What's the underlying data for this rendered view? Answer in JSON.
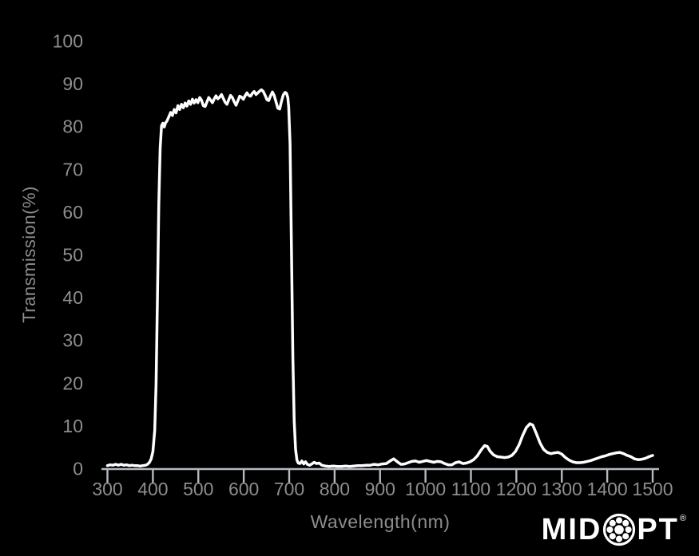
{
  "chart_data": {
    "type": "line",
    "title": "",
    "xlabel": "Wavelength(nm)",
    "ylabel": "Transmission(%)",
    "xlim": [
      300,
      1500
    ],
    "ylim": [
      0,
      100
    ],
    "x_ticks": [
      300,
      400,
      500,
      600,
      700,
      800,
      900,
      1000,
      1100,
      1200,
      1300,
      1400,
      1500
    ],
    "y_ticks": [
      0,
      10,
      20,
      30,
      40,
      50,
      60,
      70,
      80,
      90,
      100
    ],
    "grid": false,
    "legend_position": "none",
    "series": [
      {
        "name": "Transmission",
        "color": "#ffffff",
        "points": [
          [
            300,
            0.7
          ],
          [
            306,
            0.9
          ],
          [
            312,
            0.8
          ],
          [
            318,
            1.0
          ],
          [
            324,
            0.8
          ],
          [
            330,
            1.0
          ],
          [
            336,
            0.8
          ],
          [
            342,
            0.9
          ],
          [
            348,
            0.7
          ],
          [
            354,
            0.8
          ],
          [
            360,
            0.7
          ],
          [
            366,
            0.7
          ],
          [
            372,
            0.6
          ],
          [
            378,
            0.7
          ],
          [
            384,
            0.8
          ],
          [
            388,
            1.0
          ],
          [
            392,
            1.4
          ],
          [
            396,
            2.2
          ],
          [
            400,
            4.0
          ],
          [
            404,
            9.0
          ],
          [
            407,
            20.0
          ],
          [
            410,
            40.0
          ],
          [
            413,
            62.0
          ],
          [
            416,
            75.0
          ],
          [
            419,
            80.2
          ],
          [
            422,
            80.8
          ],
          [
            425,
            79.9
          ],
          [
            428,
            80.9
          ],
          [
            431,
            81.3
          ],
          [
            435,
            82.3
          ],
          [
            439,
            83.3
          ],
          [
            443,
            82.6
          ],
          [
            447,
            84.0
          ],
          [
            451,
            83.2
          ],
          [
            455,
            84.9
          ],
          [
            459,
            84.0
          ],
          [
            463,
            85.2
          ],
          [
            467,
            84.4
          ],
          [
            471,
            85.5
          ],
          [
            475,
            84.8
          ],
          [
            479,
            86.0
          ],
          [
            483,
            85.2
          ],
          [
            487,
            86.4
          ],
          [
            491,
            85.5
          ],
          [
            495,
            86.3
          ],
          [
            499,
            85.6
          ],
          [
            503,
            86.8
          ],
          [
            507,
            86.2
          ],
          [
            511,
            84.9
          ],
          [
            515,
            84.7
          ],
          [
            519,
            85.8
          ],
          [
            523,
            86.8
          ],
          [
            527,
            86.2
          ],
          [
            531,
            85.6
          ],
          [
            535,
            86.5
          ],
          [
            539,
            87.2
          ],
          [
            543,
            86.5
          ],
          [
            547,
            86.9
          ],
          [
            551,
            87.5
          ],
          [
            555,
            86.6
          ],
          [
            559,
            85.7
          ],
          [
            563,
            85.2
          ],
          [
            567,
            86.3
          ],
          [
            571,
            87.3
          ],
          [
            575,
            86.8
          ],
          [
            579,
            85.8
          ],
          [
            583,
            85.0
          ],
          [
            587,
            86.0
          ],
          [
            591,
            87.1
          ],
          [
            595,
            86.9
          ],
          [
            599,
            86.4
          ],
          [
            603,
            87.2
          ],
          [
            607,
            87.9
          ],
          [
            611,
            87.3
          ],
          [
            615,
            87.1
          ],
          [
            619,
            87.8
          ],
          [
            623,
            88.2
          ],
          [
            627,
            87.5
          ],
          [
            631,
            87.9
          ],
          [
            635,
            88.3
          ],
          [
            639,
            88.6
          ],
          [
            643,
            88.2
          ],
          [
            647,
            87.3
          ],
          [
            651,
            86.3
          ],
          [
            655,
            86.1
          ],
          [
            659,
            87.2
          ],
          [
            663,
            88.1
          ],
          [
            667,
            87.3
          ],
          [
            671,
            85.8
          ],
          [
            675,
            84.3
          ],
          [
            679,
            84.1
          ],
          [
            683,
            85.9
          ],
          [
            687,
            87.4
          ],
          [
            691,
            88.0
          ],
          [
            694,
            87.8
          ],
          [
            697,
            86.8
          ],
          [
            699,
            84.5
          ],
          [
            702,
            76.0
          ],
          [
            705,
            52.0
          ],
          [
            708,
            26.0
          ],
          [
            711,
            11.0
          ],
          [
            714,
            4.5
          ],
          [
            717,
            2.0
          ],
          [
            720,
            1.3
          ],
          [
            724,
            1.2
          ],
          [
            728,
            1.8
          ],
          [
            732,
            1.1
          ],
          [
            736,
            1.6
          ],
          [
            740,
            1.0
          ],
          [
            745,
            0.8
          ],
          [
            750,
            1.1
          ],
          [
            755,
            1.5
          ],
          [
            760,
            1.2
          ],
          [
            766,
            1.3
          ],
          [
            772,
            0.8
          ],
          [
            780,
            0.6
          ],
          [
            788,
            0.5
          ],
          [
            797,
            0.6
          ],
          [
            806,
            0.5
          ],
          [
            815,
            0.5
          ],
          [
            824,
            0.6
          ],
          [
            833,
            0.5
          ],
          [
            842,
            0.6
          ],
          [
            851,
            0.7
          ],
          [
            860,
            0.7
          ],
          [
            869,
            0.8
          ],
          [
            878,
            0.8
          ],
          [
            887,
            1.0
          ],
          [
            896,
            0.9
          ],
          [
            905,
            1.1
          ],
          [
            914,
            1.2
          ],
          [
            922,
            1.8
          ],
          [
            930,
            2.3
          ],
          [
            938,
            1.6
          ],
          [
            946,
            1.0
          ],
          [
            954,
            1.1
          ],
          [
            962,
            1.4
          ],
          [
            970,
            1.7
          ],
          [
            978,
            1.8
          ],
          [
            986,
            1.5
          ],
          [
            994,
            1.7
          ],
          [
            1002,
            1.9
          ],
          [
            1010,
            1.7
          ],
          [
            1018,
            1.5
          ],
          [
            1026,
            1.7
          ],
          [
            1034,
            1.6
          ],
          [
            1042,
            1.2
          ],
          [
            1050,
            0.9
          ],
          [
            1058,
            0.9
          ],
          [
            1066,
            1.4
          ],
          [
            1074,
            1.6
          ],
          [
            1082,
            1.2
          ],
          [
            1090,
            1.3
          ],
          [
            1098,
            1.6
          ],
          [
            1106,
            2.1
          ],
          [
            1114,
            3.0
          ],
          [
            1122,
            4.3
          ],
          [
            1130,
            5.4
          ],
          [
            1136,
            5.2
          ],
          [
            1142,
            4.1
          ],
          [
            1150,
            3.2
          ],
          [
            1158,
            2.8
          ],
          [
            1166,
            2.7
          ],
          [
            1174,
            2.6
          ],
          [
            1182,
            2.7
          ],
          [
            1190,
            3.1
          ],
          [
            1198,
            4.0
          ],
          [
            1206,
            5.6
          ],
          [
            1214,
            7.8
          ],
          [
            1222,
            9.6
          ],
          [
            1230,
            10.5
          ],
          [
            1236,
            10.2
          ],
          [
            1244,
            8.2
          ],
          [
            1252,
            6.0
          ],
          [
            1260,
            4.5
          ],
          [
            1268,
            3.8
          ],
          [
            1276,
            3.5
          ],
          [
            1284,
            3.7
          ],
          [
            1292,
            3.8
          ],
          [
            1300,
            3.4
          ],
          [
            1308,
            2.6
          ],
          [
            1316,
            2.0
          ],
          [
            1324,
            1.6
          ],
          [
            1332,
            1.4
          ],
          [
            1340,
            1.4
          ],
          [
            1348,
            1.5
          ],
          [
            1356,
            1.7
          ],
          [
            1364,
            1.9
          ],
          [
            1372,
            2.2
          ],
          [
            1380,
            2.5
          ],
          [
            1388,
            2.8
          ],
          [
            1396,
            3.0
          ],
          [
            1404,
            3.3
          ],
          [
            1412,
            3.5
          ],
          [
            1420,
            3.7
          ],
          [
            1428,
            3.8
          ],
          [
            1436,
            3.5
          ],
          [
            1444,
            3.1
          ],
          [
            1452,
            2.8
          ],
          [
            1460,
            2.3
          ],
          [
            1468,
            2.1
          ],
          [
            1476,
            2.2
          ],
          [
            1484,
            2.4
          ],
          [
            1492,
            2.8
          ],
          [
            1500,
            3.1
          ]
        ]
      }
    ]
  },
  "branding": {
    "logo_left": "MID",
    "logo_right": "PT",
    "registered": "®",
    "icon": "ball-bearing-icon",
    "color": "#ffffff"
  },
  "colors": {
    "background": "#000000",
    "axis": "#b3bac1",
    "labels": "#8d8d8d",
    "curve": "#ffffff"
  }
}
